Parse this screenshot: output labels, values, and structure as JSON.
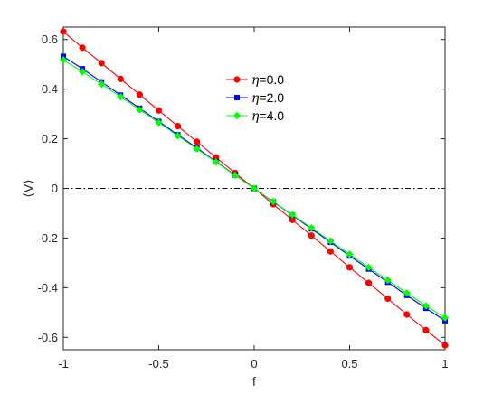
{
  "chart_data": {
    "type": "line",
    "xlabel": "f",
    "ylabel": "⟨V⟩",
    "xlim": [
      -1,
      1
    ],
    "ylim": [
      -0.65,
      0.65
    ],
    "xticks": [
      -1,
      -0.5,
      0,
      0.5,
      1
    ],
    "xtick_labels": [
      "-1",
      "-0.5",
      "0",
      "0.5",
      "1"
    ],
    "yticks": [
      0.6,
      0.4,
      0.2,
      0,
      -0.2,
      -0.4,
      -0.6
    ],
    "ytick_labels": [
      "0.6",
      "0.4",
      "0.2",
      "0",
      "-0.2",
      "-0.4",
      "-0.6"
    ],
    "grid": false,
    "legend_position": "top-center",
    "reference_line": {
      "y": 0,
      "style": "dash-dot",
      "color": "#000000"
    },
    "x": [
      -1,
      -0.9,
      -0.8,
      -0.7,
      -0.6,
      -0.5,
      -0.4,
      -0.3,
      -0.2,
      -0.1,
      0,
      0.1,
      0.2,
      0.3,
      0.4,
      0.5,
      0.6,
      0.7,
      0.8,
      0.9,
      1
    ],
    "series": [
      {
        "name": "η=0.0",
        "legend_symbol": "η",
        "legend_value": "=0.0",
        "color": "#ff0000",
        "marker": "circle",
        "values": [
          0.632,
          0.567,
          0.505,
          0.441,
          0.378,
          0.314,
          0.251,
          0.188,
          0.125,
          0.062,
          0.0,
          -0.064,
          -0.127,
          -0.19,
          -0.254,
          -0.318,
          -0.381,
          -0.444,
          -0.508,
          -0.571,
          -0.632
        ]
      },
      {
        "name": "η=2.0",
        "legend_symbol": "η",
        "legend_value": "=2.0",
        "color": "#0000ff",
        "marker": "square",
        "values": [
          0.532,
          0.482,
          0.429,
          0.376,
          0.323,
          0.27,
          0.216,
          0.163,
          0.108,
          0.054,
          0.0,
          -0.054,
          -0.108,
          -0.163,
          -0.217,
          -0.272,
          -0.325,
          -0.378,
          -0.431,
          -0.483,
          -0.533
        ]
      },
      {
        "name": "η=4.0",
        "legend_symbol": "η",
        "legend_value": "=4.0",
        "color": "#00ff00",
        "marker": "diamond",
        "values": [
          0.518,
          0.47,
          0.42,
          0.369,
          0.317,
          0.265,
          0.212,
          0.159,
          0.106,
          0.053,
          0.0,
          -0.053,
          -0.106,
          -0.159,
          -0.212,
          -0.265,
          -0.318,
          -0.37,
          -0.422,
          -0.473,
          -0.521
        ]
      }
    ]
  }
}
